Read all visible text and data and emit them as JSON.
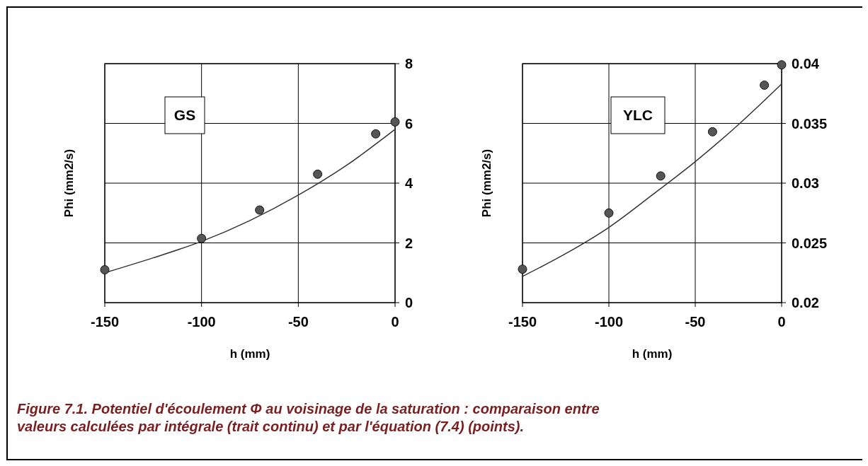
{
  "chart_data": [
    {
      "type": "scatter",
      "title": "GS",
      "xlabel": "h (mm)",
      "ylabel": "Phi (mm2/s)",
      "xlim": [
        -150,
        0
      ],
      "xticks": [
        -150,
        -100,
        -50,
        0
      ],
      "ylim": [
        0,
        8
      ],
      "yticks": [
        0,
        2,
        4,
        6,
        8
      ],
      "grid": true,
      "annotations": [
        "Figure 7.1. Potentiel d'écoulement Φ au voisinage de la saturation : comparaison entre valeurs calculées par intégrale (trait continu) et par l'équation (7.4) (points)."
      ],
      "series": [
        {
          "type": "line",
          "color": "#333333",
          "line_style": "solid",
          "x": [
            -150,
            -125,
            -100,
            -75,
            -50,
            -25,
            0
          ],
          "values": [
            1.0,
            1.5,
            2.05,
            2.75,
            3.6,
            4.6,
            5.8
          ]
        },
        {
          "color": "#555555",
          "marker": "circle",
          "x": [
            -150,
            -100,
            -70,
            -40,
            -10,
            0
          ],
          "values": [
            1.1,
            2.15,
            3.1,
            4.3,
            5.65,
            6.05
          ]
        }
      ]
    },
    {
      "type": "scatter",
      "title": "YLC",
      "xlabel": "h (mm)",
      "ylabel": "Phi (mm2/s)",
      "xlim": [
        -150,
        0
      ],
      "xticks": [
        -150,
        -100,
        -50,
        0
      ],
      "ylim": [
        0.02,
        0.04
      ],
      "yticks": [
        0.02,
        0.025,
        0.03,
        0.035,
        0.04
      ],
      "grid": true,
      "series": [
        {
          "type": "line",
          "color": "#333333",
          "line_style": "solid",
          "x": [
            -150,
            -125,
            -100,
            -75,
            -50,
            -25,
            0
          ],
          "values": [
            0.0222,
            0.0241,
            0.0263,
            0.029,
            0.0318,
            0.0349,
            0.0383
          ]
        },
        {
          "color": "#555555",
          "marker": "circle",
          "x": [
            -150,
            -100,
            -70,
            -40,
            -10,
            0
          ],
          "values": [
            0.0228,
            0.0275,
            0.0306,
            0.0343,
            0.0382,
            0.0399
          ]
        }
      ]
    }
  ]
}
